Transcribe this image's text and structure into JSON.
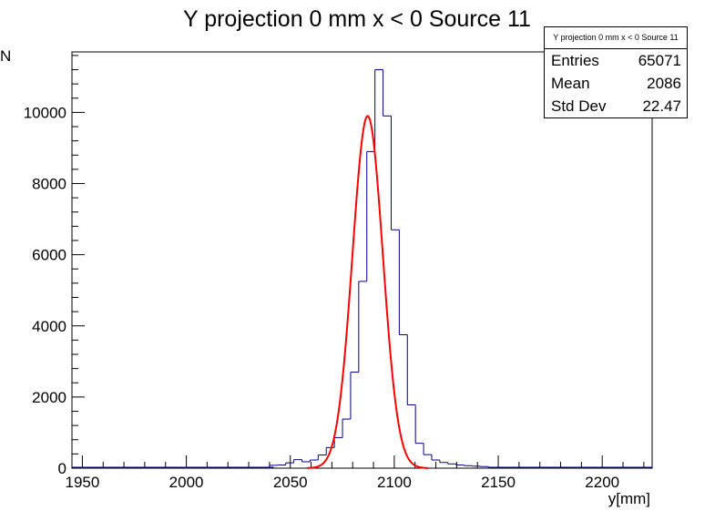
{
  "chart_data": {
    "type": "histogram",
    "title": "Y projection 0 mm x < 0 Source 11",
    "xlabel": "y[mm]",
    "ylabel": "N",
    "xlim": [
      1945,
      2224
    ],
    "ylim": [
      0,
      11700
    ],
    "x_ticks": [
      1950,
      2000,
      2050,
      2100,
      2150,
      2200
    ],
    "y_ticks": [
      0,
      2000,
      4000,
      6000,
      8000,
      10000
    ],
    "bin_width": 3.9,
    "bins": [
      {
        "x0": 2040.0,
        "y": 80
      },
      {
        "x0": 2043.9,
        "y": 90
      },
      {
        "x0": 2047.8,
        "y": 150
      },
      {
        "x0": 2051.7,
        "y": 240
      },
      {
        "x0": 2055.6,
        "y": 180
      },
      {
        "x0": 2059.5,
        "y": 230
      },
      {
        "x0": 2063.4,
        "y": 370
      },
      {
        "x0": 2067.3,
        "y": 580
      },
      {
        "x0": 2071.2,
        "y": 860
      },
      {
        "x0": 2075.1,
        "y": 1380
      },
      {
        "x0": 2079.0,
        "y": 2700
      },
      {
        "x0": 2082.9,
        "y": 5250
      },
      {
        "x0": 2086.8,
        "y": 8900
      },
      {
        "x0": 2090.7,
        "y": 11200
      },
      {
        "x0": 2094.6,
        "y": 9900
      },
      {
        "x0": 2098.5,
        "y": 6700
      },
      {
        "x0": 2102.4,
        "y": 3750
      },
      {
        "x0": 2106.3,
        "y": 1780
      },
      {
        "x0": 2110.2,
        "y": 700
      },
      {
        "x0": 2114.1,
        "y": 380
      },
      {
        "x0": 2118.0,
        "y": 230
      },
      {
        "x0": 2121.9,
        "y": 160
      },
      {
        "x0": 2125.8,
        "y": 120
      },
      {
        "x0": 2129.7,
        "y": 90
      },
      {
        "x0": 2133.6,
        "y": 70
      },
      {
        "x0": 2137.5,
        "y": 55
      },
      {
        "x0": 2141.4,
        "y": 45
      }
    ],
    "fit": {
      "type": "gaussian",
      "color": "#ff0000",
      "amplitude": 9900,
      "mean": 2087.2,
      "sigma": 7.3
    },
    "line_color": "#000080",
    "stats_box": {
      "title": "Y projection 0 mm x < 0 Source 11",
      "entries_label": "Entries",
      "entries_value": "65071",
      "mean_label": "Mean",
      "mean_value": "2086",
      "stddev_label": "Std Dev",
      "stddev_value": "22.47"
    }
  }
}
